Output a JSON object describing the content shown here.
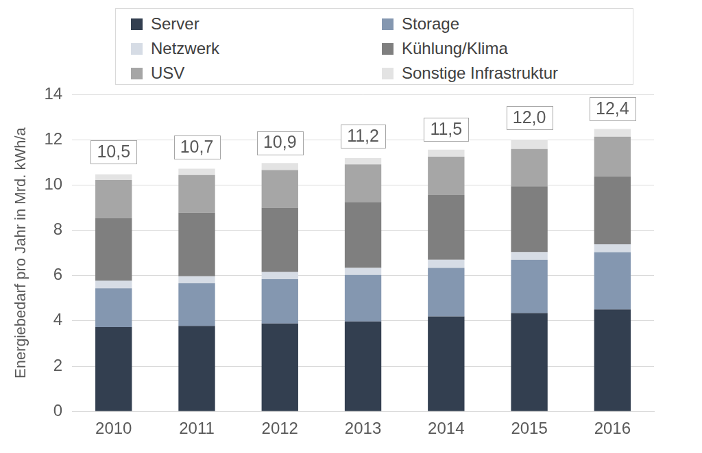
{
  "chart_data": {
    "type": "bar",
    "stacked": true,
    "grid": true,
    "legend": "top",
    "y_label": "Energiebedarf pro Jahr in Mrd. kWh/a",
    "categories": [
      "2010",
      "2011",
      "2012",
      "2013",
      "2014",
      "2015",
      "2016"
    ],
    "series": [
      {
        "name": "Server",
        "color": "#333f50",
        "values": [
          3.72,
          3.78,
          3.88,
          3.97,
          4.19,
          4.34,
          4.5
        ]
      },
      {
        "name": "Storage",
        "color": "#8497b0",
        "values": [
          1.72,
          1.88,
          1.96,
          2.06,
          2.15,
          2.35,
          2.53
        ]
      },
      {
        "name": "Netzwerk",
        "color": "#d6dce5",
        "values": [
          0.34,
          0.31,
          0.32,
          0.31,
          0.35,
          0.34,
          0.35
        ]
      },
      {
        "name": "Kühlung/Klima",
        "color": "#7f7f7f",
        "values": [
          2.75,
          2.81,
          2.84,
          2.91,
          2.87,
          2.91,
          3.0
        ]
      },
      {
        "name": "USV",
        "color": "#a6a6a6",
        "values": [
          1.69,
          1.66,
          1.66,
          1.66,
          1.69,
          1.65,
          1.75
        ]
      },
      {
        "name": "Sonstige Infrastruktur",
        "color": "#e3e3e3",
        "values": [
          0.25,
          0.28,
          0.31,
          0.28,
          0.31,
          0.41,
          0.34
        ]
      }
    ],
    "totals": {
      "values": [
        10.5,
        10.7,
        10.9,
        11.2,
        11.5,
        12.0,
        12.4
      ],
      "value_labels": [
        "10,5",
        "10,7",
        "10,9",
        "11,2",
        "11,5",
        "12,0",
        "12,4"
      ]
    },
    "ylim": [
      0,
      14
    ],
    "yticks": [
      0,
      2,
      4,
      6,
      8,
      10,
      12,
      14
    ]
  }
}
